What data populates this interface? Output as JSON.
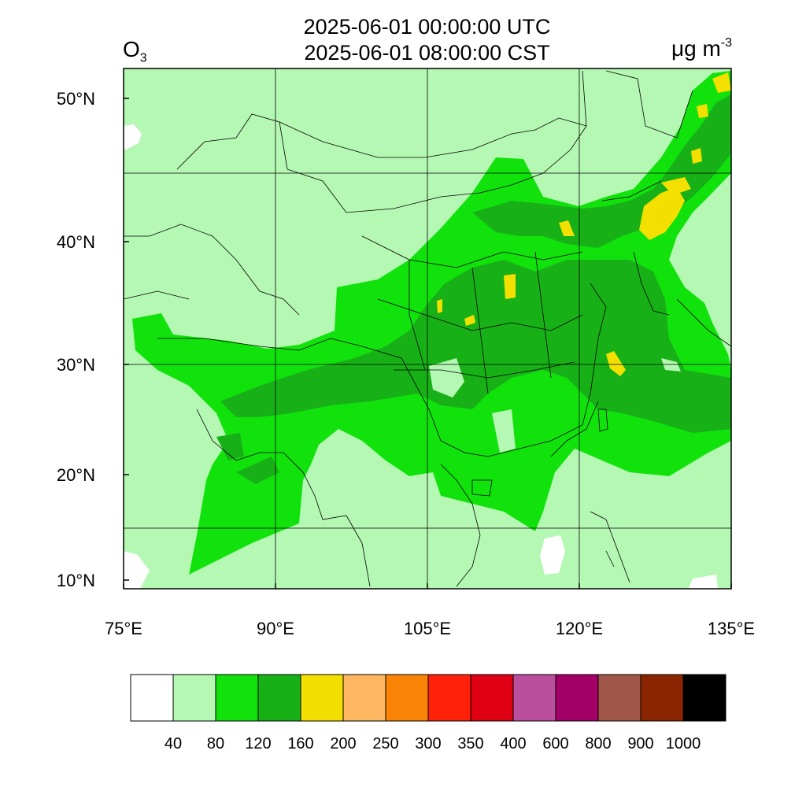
{
  "header": {
    "title_utc": "2025-06-01 00:00:00 UTC",
    "title_cst": "2025-06-01 08:00:00 CST",
    "variable": "O",
    "variable_subscript": "3",
    "units": "μg m",
    "units_superscript": "-3"
  },
  "map": {
    "lon_range": [
      75,
      135
    ],
    "lat_range": [
      9,
      52
    ],
    "lon_ticks": [
      {
        "value": 75,
        "label": "75°E"
      },
      {
        "value": 90,
        "label": "90°E"
      },
      {
        "value": 105,
        "label": "105°E"
      },
      {
        "value": 120,
        "label": "120°E"
      },
      {
        "value": 135,
        "label": "135°E"
      }
    ],
    "lat_ticks": [
      {
        "value": 50,
        "label": "50°N"
      },
      {
        "value": 40,
        "label": "40°N"
      },
      {
        "value": 30,
        "label": "30°N"
      },
      {
        "value": 20,
        "label": "20°N"
      },
      {
        "value": 10,
        "label": "10°N"
      }
    ],
    "gridlines": true,
    "background_color": "#b5f8b3"
  },
  "colorbar": {
    "colors": [
      "#ffffff",
      "#b5f8b3",
      "#11e20c",
      "#17b117",
      "#f4e000",
      "#ffb660",
      "#f98406",
      "#ff2109",
      "#df0014",
      "#ba4f9d",
      "#a20066",
      "#a0574a",
      "#8b2400",
      "#000000"
    ],
    "labels": [
      "40",
      "80",
      "120",
      "160",
      "200",
      "250",
      "300",
      "350",
      "400",
      "600",
      "800",
      "900",
      "1000"
    ]
  }
}
